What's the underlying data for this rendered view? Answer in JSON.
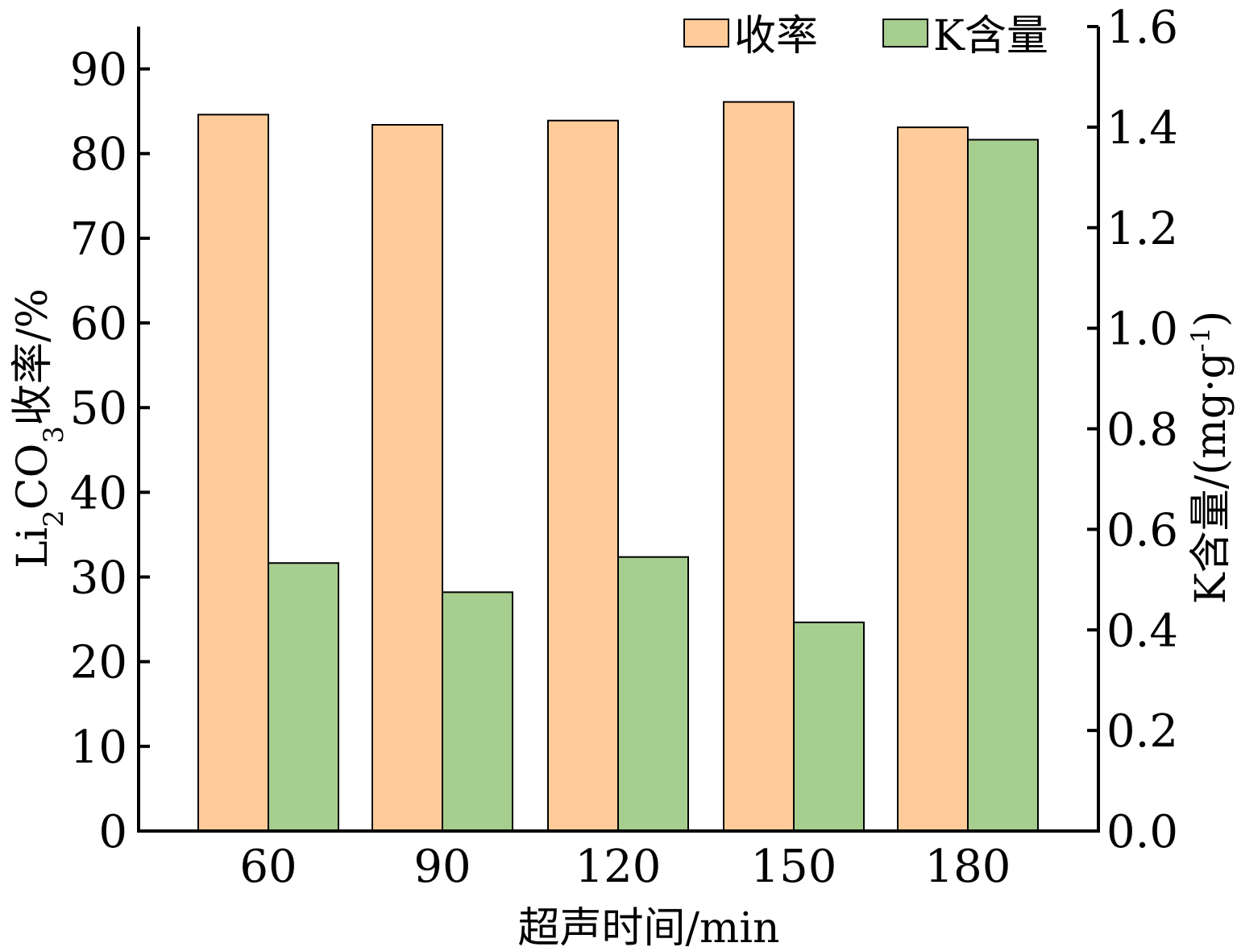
{
  "chart_data": {
    "type": "bar",
    "categories": [
      "60",
      "90",
      "120",
      "150",
      "180"
    ],
    "series": [
      {
        "name": "收率",
        "axis": "left",
        "color": "#FFCC99",
        "values": [
          84.6,
          83.4,
          83.9,
          86.1,
          83.1
        ]
      },
      {
        "name": "K含量",
        "axis": "right",
        "color": "#A6CE8E",
        "values": [
          0.533,
          0.475,
          0.545,
          0.415,
          1.375
        ]
      }
    ],
    "xlabel": "超声时间/min",
    "ylabel_left": {
      "parts": [
        {
          "text": "Li",
          "sub": false
        },
        {
          "text": "2",
          "sub": true
        },
        {
          "text": "CO",
          "sub": false
        },
        {
          "text": "3",
          "sub": true
        },
        {
          "text": "收率/%",
          "sub": false
        }
      ]
    },
    "ylabel_right": {
      "parts": [
        {
          "text": "K含量/(mg·g",
          "sup": false
        },
        {
          "text": "-1",
          "sup": true
        },
        {
          "text": ")",
          "sup": false
        }
      ]
    },
    "ylim_left": [
      0,
      95
    ],
    "yticks_left": [
      "0",
      "10",
      "20",
      "30",
      "40",
      "50",
      "60",
      "70",
      "80",
      "90"
    ],
    "ylim_right": [
      0,
      1.6
    ],
    "yticks_right": [
      "0.0",
      "0.2",
      "0.4",
      "0.6",
      "0.8",
      "1.0",
      "1.2",
      "1.4",
      "1.6"
    ],
    "legend_position": "top-right",
    "grid": false
  }
}
